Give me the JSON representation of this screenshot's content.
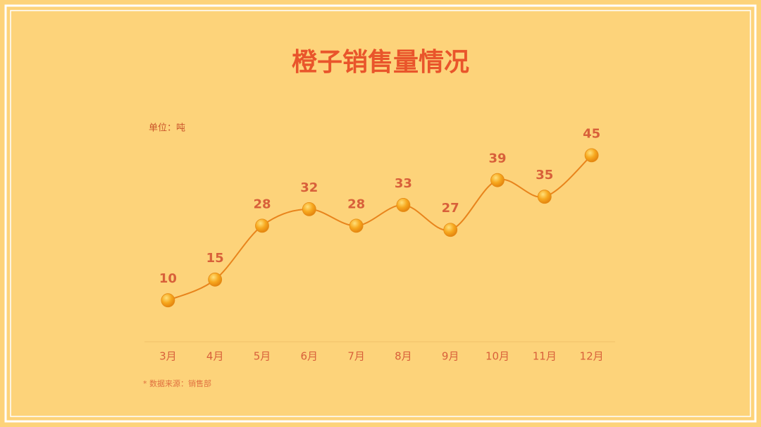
{
  "chart_data": {
    "type": "line",
    "title": "橙子销售量情况",
    "unit_label": "单位：吨",
    "source": "* 数据来源：销售部",
    "categories": [
      "3月",
      "4月",
      "5月",
      "6月",
      "7月",
      "8月",
      "9月",
      "10月",
      "11月",
      "12月"
    ],
    "values": [
      10,
      15,
      28,
      32,
      28,
      33,
      27,
      39,
      35,
      45
    ],
    "color": "#e8841c",
    "ylim": [
      0,
      50
    ],
    "grid": false
  }
}
